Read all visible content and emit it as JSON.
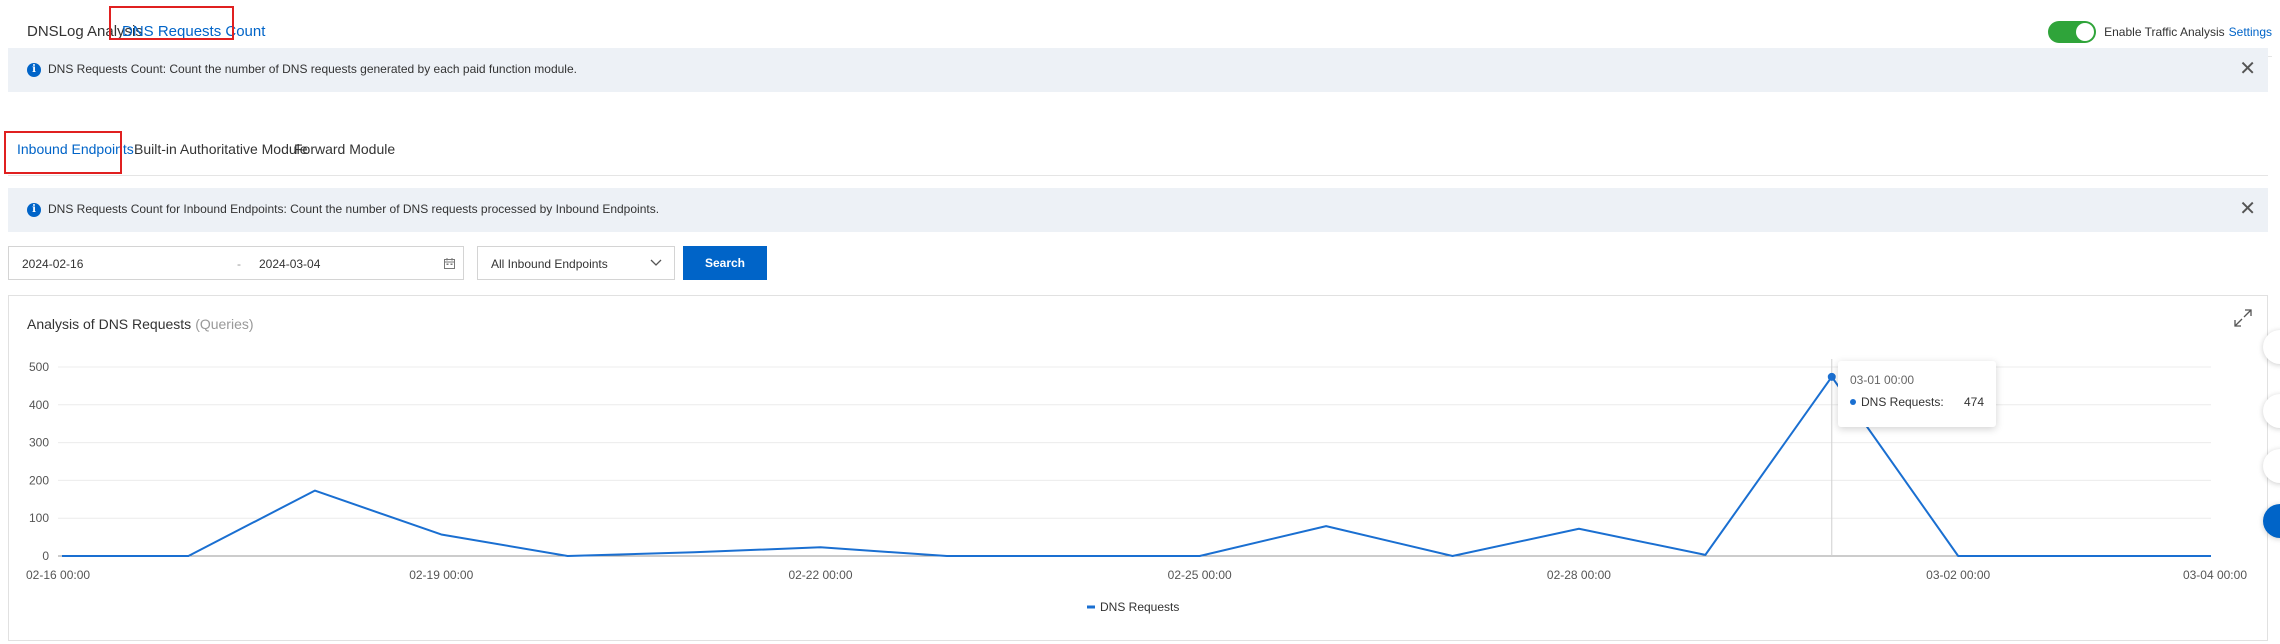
{
  "top_tabs": [
    {
      "label": "DNSLog Analysis"
    },
    {
      "label": "DNS Requests Count"
    }
  ],
  "traffic_toggle": {
    "label": "Enable Traffic Analysis",
    "state": "on",
    "settings_label": "Settings"
  },
  "notice1": {
    "text": "DNS Requests Count: Count the number of DNS requests generated by each paid function module."
  },
  "sub_tabs": [
    {
      "label": "Inbound Endpoints"
    },
    {
      "label": "Built-in Authoritative Module"
    },
    {
      "label": "Forward Module"
    }
  ],
  "notice2": {
    "text": "DNS Requests Count for Inbound Endpoints: Count the number of DNS requests processed by Inbound Endpoints."
  },
  "filters": {
    "start_date": "2024-02-16",
    "separator": "-",
    "end_date": "2024-03-04",
    "endpoint_select": "All Inbound Endpoints",
    "search_label": "Search"
  },
  "chart_data": {
    "type": "line",
    "title": "Analysis of DNS Requests",
    "unit": "(Queries)",
    "x": [
      "02-16 00:00",
      "02-17 00:00",
      "02-18 00:00",
      "02-19 00:00",
      "02-20 00:00",
      "02-21 00:00",
      "02-22 00:00",
      "02-23 00:00",
      "02-24 00:00",
      "02-25 00:00",
      "02-26 00:00",
      "02-27 00:00",
      "02-28 00:00",
      "02-29 00:00",
      "03-01 00:00",
      "03-02 00:00",
      "03-03 00:00",
      "03-04 00:00"
    ],
    "x_tick_labels": [
      "02-16 00:00",
      "02-19 00:00",
      "02-22 00:00",
      "02-25 00:00",
      "02-28 00:00",
      "03-02 00:00",
      "03-04 00:00"
    ],
    "series": [
      {
        "name": "DNS Requests",
        "color": "#1a6fd1",
        "values": [
          0,
          0,
          173,
          57,
          0,
          10,
          23,
          0,
          0,
          0,
          79,
          0,
          72,
          3,
          474,
          0,
          0,
          0
        ]
      }
    ],
    "ylim": [
      0,
      500
    ],
    "yticks": [
      0,
      100,
      200,
      300,
      400,
      500
    ],
    "grid": true,
    "legend": "bottom-center",
    "tooltip": {
      "x": "03-01 00:00",
      "series": "DNS Requests:",
      "value": "474"
    }
  }
}
